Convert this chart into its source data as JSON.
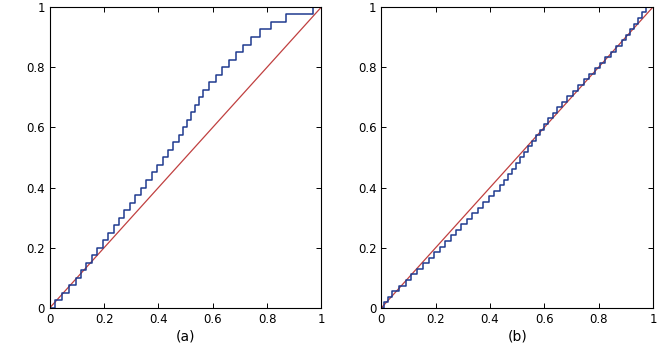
{
  "title_a": "(a)",
  "title_b": "(b)",
  "line_color": "#1f3a8f",
  "diag_color": "#c04040",
  "xlim": [
    0,
    1
  ],
  "ylim": [
    0,
    1
  ],
  "xticks": [
    0,
    0.2,
    0.4,
    0.6,
    0.8,
    1
  ],
  "yticks": [
    0,
    0.2,
    0.4,
    0.6,
    0.8,
    1
  ],
  "figsize": [
    6.63,
    3.46
  ],
  "dpi": 100,
  "samples_a": [
    0.02,
    0.045,
    0.07,
    0.095,
    0.115,
    0.135,
    0.155,
    0.175,
    0.195,
    0.215,
    0.235,
    0.255,
    0.275,
    0.295,
    0.315,
    0.335,
    0.355,
    0.375,
    0.395,
    0.415,
    0.435,
    0.455,
    0.475,
    0.49,
    0.505,
    0.52,
    0.535,
    0.55,
    0.565,
    0.585,
    0.61,
    0.635,
    0.66,
    0.685,
    0.71,
    0.74,
    0.775,
    0.815,
    0.87,
    0.97
  ],
  "samples_b": [
    0.01,
    0.025,
    0.04,
    0.065,
    0.09,
    0.11,
    0.13,
    0.155,
    0.175,
    0.195,
    0.215,
    0.235,
    0.255,
    0.275,
    0.295,
    0.315,
    0.335,
    0.355,
    0.375,
    0.395,
    0.415,
    0.435,
    0.45,
    0.465,
    0.48,
    0.495,
    0.51,
    0.525,
    0.54,
    0.555,
    0.57,
    0.585,
    0.6,
    0.615,
    0.63,
    0.645,
    0.665,
    0.685,
    0.705,
    0.725,
    0.745,
    0.765,
    0.785,
    0.805,
    0.825,
    0.845,
    0.865,
    0.885,
    0.9,
    0.915,
    0.93,
    0.945,
    0.96,
    0.975
  ]
}
